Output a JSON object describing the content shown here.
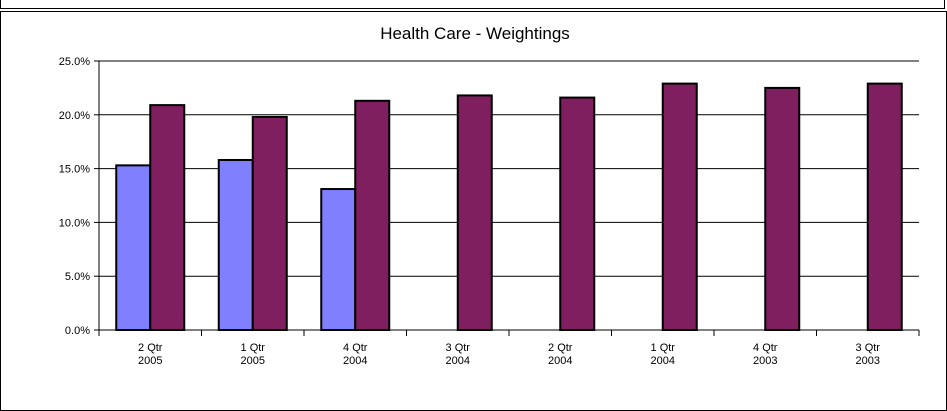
{
  "chart_data": {
    "type": "bar",
    "title": "Health Care  -  Weightings",
    "xlabel": "",
    "ylabel": "",
    "ylim": [
      0,
      25
    ],
    "yticks": [
      "0.0%",
      "5.0%",
      "10.0%",
      "15.0%",
      "20.0%",
      "25.0%"
    ],
    "grid": true,
    "legend": "none",
    "categories": [
      [
        "2 Qtr",
        "2005"
      ],
      [
        "1 Qtr",
        "2005"
      ],
      [
        "4 Qtr",
        "2004"
      ],
      [
        "3 Qtr",
        "2004"
      ],
      [
        "2 Qtr",
        "2004"
      ],
      [
        "1 Qtr",
        "2004"
      ],
      [
        "4 Qtr",
        "2003"
      ],
      [
        "3 Qtr",
        "2003"
      ]
    ],
    "series": [
      {
        "color": "#8080ff",
        "values": [
          15.3,
          15.8,
          13.1,
          null,
          null,
          null,
          null,
          null
        ]
      },
      {
        "color": "#7f1f5f",
        "values": [
          20.9,
          19.8,
          21.3,
          21.8,
          21.6,
          22.9,
          22.5,
          22.9
        ]
      }
    ]
  }
}
